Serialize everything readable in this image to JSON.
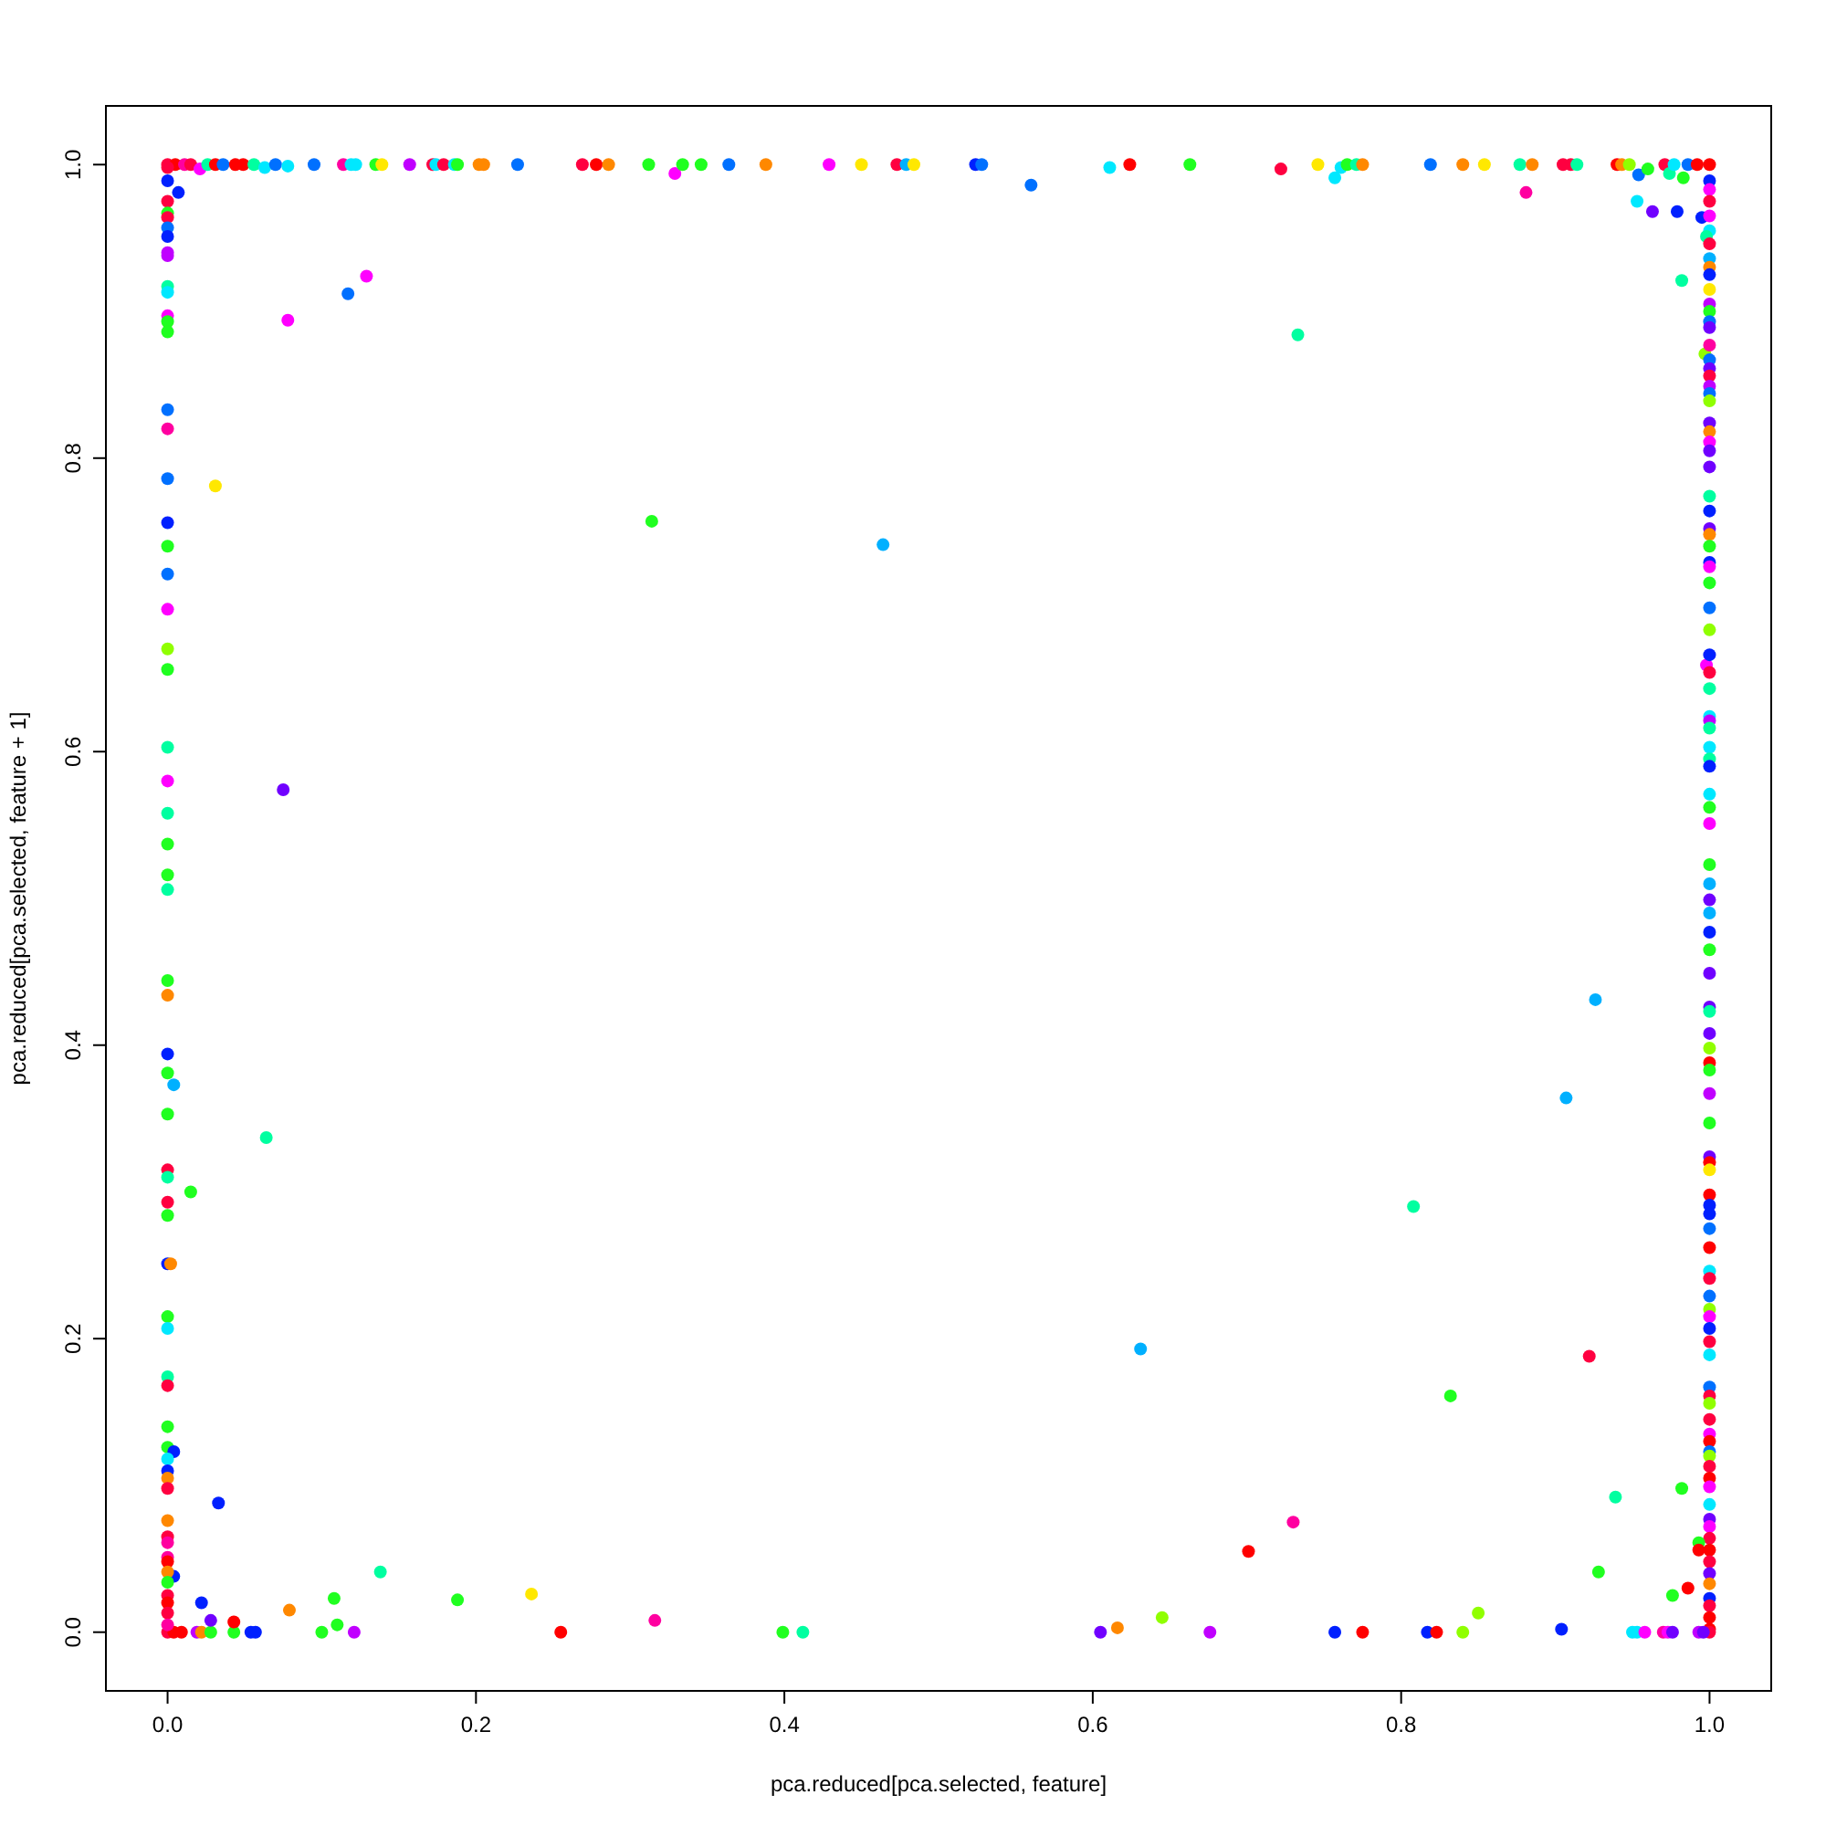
{
  "chart_data": {
    "type": "scatter",
    "xlabel": "pca.reduced[pca.selected, feature]",
    "ylabel": "pca.reduced[pca.selected, feature + 1]",
    "marker": "circle",
    "xlim": [
      -0.04,
      1.04
    ],
    "ylim": [
      -0.04,
      1.04
    ],
    "xticks": [
      {
        "value": 0,
        "label": "0.0"
      },
      {
        "value": 0.2,
        "label": "0.2"
      },
      {
        "value": 0.4,
        "label": "0.4"
      },
      {
        "value": 0.6,
        "label": "0.6"
      },
      {
        "value": 0.8,
        "label": "0.8"
      },
      {
        "value": 1,
        "label": "1.0"
      }
    ],
    "yticks": [
      {
        "value": 0,
        "label": "0.0"
      },
      {
        "value": 0.2,
        "label": "0.2"
      },
      {
        "value": 0.4,
        "label": "0.4"
      },
      {
        "value": 0.6,
        "label": "0.6"
      },
      {
        "value": 0.8,
        "label": "0.8"
      },
      {
        "value": 1,
        "label": "1.0"
      }
    ],
    "x": [
      0,
      0.005,
      0.011,
      0.015,
      0.021,
      0.026,
      0.031,
      0.036,
      0.044,
      0.049,
      0.056,
      0.063,
      0.07,
      0.078,
      0.095,
      0.114,
      0.119,
      0.122,
      0.135,
      0.139,
      0.157,
      0.172,
      0.174,
      0.179,
      0.186,
      0.188,
      0.202,
      0.205,
      0.227,
      0.269,
      0.278,
      0.286,
      0.312,
      0.329,
      0.334,
      0.346,
      0.364,
      0.388,
      0.429,
      0.45,
      0.473,
      0.479,
      0.484,
      0.524,
      0.528,
      0.56,
      0.611,
      0.624,
      0.663,
      0.722,
      0.746,
      0.757,
      0.761,
      0.765,
      0.771,
      0.775,
      0.819,
      0.84,
      0.854,
      0.877,
      0.881,
      0.885,
      0.905,
      0.91,
      0.914,
      0.94,
      0.943,
      0.948,
      0.954,
      0.96,
      0.971,
      0.974,
      0.977,
      0.983,
      0.986,
      0.992,
      0.953,
      0.963,
      0.979,
      0.995,
      0.982,
      0.997,
      0.998,
      1,
      1,
      1,
      1,
      1,
      1,
      0.998,
      1,
      1,
      1,
      1,
      1,
      1,
      1,
      1,
      1,
      1,
      1,
      1,
      1,
      1,
      1,
      1,
      1,
      1,
      1,
      1,
      1,
      1,
      1,
      1,
      1,
      1,
      1,
      1,
      1,
      1,
      1,
      1,
      1,
      1,
      1,
      1,
      1,
      1,
      1,
      1,
      1,
      1,
      1,
      1,
      1,
      1,
      1,
      1,
      1,
      1,
      1,
      1,
      1,
      1,
      1,
      1,
      1,
      1,
      1,
      1,
      1,
      1,
      1,
      1,
      1,
      1,
      1,
      1,
      1,
      1,
      1,
      1,
      1,
      1,
      1,
      1,
      1,
      1,
      1,
      1,
      1,
      1,
      1,
      1,
      1,
      1,
      1,
      1,
      1,
      1,
      1,
      1,
      1,
      1,
      1,
      1,
      1,
      1,
      0.982,
      0.993,
      0.993,
      0.986,
      0.976,
      0.605,
      0.616,
      0.645,
      0.676,
      0.757,
      0.775,
      0.817,
      0.823,
      0.84,
      0.85,
      0.904,
      0.928,
      0.95,
      0.953,
      0.958,
      0.97,
      0.973,
      0.976,
      0.993,
      0.996,
      0,
      0.004,
      0.009,
      0.019,
      0.022,
      0.028,
      0.043,
      0.054,
      0.057,
      0.1,
      0.121,
      0.255,
      0.399,
      0.412,
      0.004,
      0.138,
      0.022,
      0.108,
      0.188,
      0.236,
      0.079,
      0.028,
      0.043,
      0.11,
      0.316,
      0,
      0,
      0.007,
      0,
      0,
      0,
      0,
      0,
      0,
      0,
      0,
      0,
      0,
      0,
      0,
      0,
      0,
      0,
      0.031,
      0,
      0,
      0,
      0,
      0,
      0,
      0,
      0,
      0,
      0,
      0,
      0,
      0,
      0,
      0,
      0,
      0.004,
      0,
      0,
      0,
      0,
      0.015,
      0,
      0,
      0.002,
      0,
      0,
      0,
      0,
      0,
      0,
      0.004,
      0,
      0,
      0,
      0,
      0.033,
      0,
      0,
      0,
      0,
      0,
      0,
      0,
      0,
      0,
      0,
      0,
      0.117,
      0.129,
      0.078,
      0.314,
      0.464,
      0.075,
      0.064,
      0.733,
      0.926,
      0.907,
      0.808,
      0.631,
      0.832,
      0.922,
      0.939,
      0.73,
      0.701
    ],
    "values": [
      1,
      1,
      1,
      1,
      0.997,
      1,
      1,
      1,
      1,
      1,
      1,
      0.998,
      1,
      0.999,
      1,
      1,
      1,
      1,
      1,
      1,
      1,
      1,
      1,
      1,
      1,
      1,
      1,
      1,
      1,
      1,
      1,
      1,
      1,
      0.994,
      1,
      1,
      1,
      1,
      1,
      1,
      1,
      1,
      1,
      1,
      1,
      0.986,
      0.998,
      1,
      1,
      0.997,
      1,
      0.991,
      0.998,
      1,
      1,
      1,
      1,
      1,
      1,
      1,
      0.981,
      1,
      1,
      1,
      1,
      1,
      1,
      1,
      0.993,
      0.997,
      1,
      0.994,
      1,
      0.991,
      1,
      1,
      0.975,
      0.968,
      0.968,
      0.964,
      0.921,
      0.871,
      0.659,
      1,
      0.989,
      0.983,
      0.975,
      0.965,
      0.955,
      0.951,
      0.946,
      0.936,
      0.93,
      0.925,
      0.915,
      0.905,
      0.9,
      0.893,
      0.889,
      0.877,
      0.867,
      0.861,
      0.856,
      0.849,
      0.844,
      0.839,
      0.824,
      0.818,
      0.811,
      0.805,
      0.794,
      0.774,
      0.764,
      0.752,
      0.748,
      0.74,
      0.729,
      0.726,
      0.715,
      0.698,
      0.683,
      0.666,
      0.654,
      0.643,
      0.624,
      0.621,
      0.616,
      0.603,
      0.595,
      0.59,
      0.571,
      0.562,
      0.551,
      0.523,
      0.51,
      0.499,
      0.49,
      0.477,
      0.465,
      0.449,
      0.426,
      0.423,
      0.408,
      0.398,
      0.388,
      0.383,
      0.367,
      0.347,
      0.324,
      0.32,
      0.315,
      0.298,
      0.291,
      0.285,
      0.275,
      0.262,
      0.246,
      0.241,
      0.229,
      0.22,
      0.215,
      0.207,
      0.198,
      0.189,
      0.167,
      0.161,
      0.156,
      0.145,
      0.135,
      0.13,
      0.123,
      0.12,
      0.113,
      0.105,
      0.099,
      0.087,
      0.077,
      0.072,
      0.064,
      0.056,
      0.048,
      0.04,
      0.033,
      0.023,
      0.018,
      0.01,
      0.002,
      0,
      0.098,
      0.061,
      0.056,
      0.03,
      0.025,
      0,
      0.003,
      0.01,
      0,
      0,
      0,
      0,
      0,
      0,
      0.013,
      0.002,
      0.041,
      0,
      0,
      0,
      0,
      0,
      0,
      0,
      0,
      0,
      0,
      0,
      0,
      0,
      0,
      0,
      0,
      0,
      0,
      0,
      0,
      0,
      0,
      0.038,
      0.041,
      0.02,
      0.023,
      0.022,
      0.026,
      0.015,
      0.008,
      0.007,
      0.005,
      0.008,
      0.998,
      0.989,
      0.981,
      0.975,
      0.967,
      0.964,
      0.957,
      0.951,
      0.94,
      0.938,
      0.917,
      0.913,
      0.897,
      0.893,
      0.886,
      0.833,
      0.82,
      0.786,
      0.781,
      0.756,
      0.74,
      0.721,
      0.697,
      0.67,
      0.656,
      0.603,
      0.58,
      0.558,
      0.537,
      0.516,
      0.506,
      0.444,
      0.434,
      0.394,
      0.381,
      0.373,
      0.353,
      0.315,
      0.31,
      0.293,
      0.3,
      0.284,
      0.251,
      0.251,
      0.215,
      0.207,
      0.174,
      0.168,
      0.14,
      0.126,
      0.123,
      0.118,
      0.11,
      0.105,
      0.098,
      0.088,
      0.076,
      0.065,
      0.061,
      0.051,
      0.048,
      0.041,
      0.034,
      0.025,
      0.02,
      0.013,
      0.005,
      0.912,
      0.924,
      0.894,
      0.757,
      0.741,
      0.574,
      0.337,
      0.884,
      0.431,
      0.364,
      0.29,
      0.193,
      0.161,
      0.188,
      0.092,
      0.075,
      0.055
    ],
    "colors": [
      "#ff0040",
      "#ff0000",
      "#ff00a0",
      "#ff0040",
      "#ff00ff",
      "#00ffa0",
      "#ff0000",
      "#0070ff",
      "#ff0000",
      "#ff0000",
      "#00ffa0",
      "#00e8ff",
      "#0070ff",
      "#00e8ff",
      "#0070ff",
      "#ff00a0",
      "#00e8ff",
      "#00e8ff",
      "#20ff20",
      "#ffe800",
      "#c000ff",
      "#ff0040",
      "#00e8ff",
      "#ff0040",
      "#00e8ff",
      "#20ff20",
      "#ff8800",
      "#ff8800",
      "#0070ff",
      "#ff0040",
      "#ff0000",
      "#ff8800",
      "#20ff20",
      "#ff00ff",
      "#20ff20",
      "#20ff20",
      "#0070ff",
      "#ff8800",
      "#ff00ff",
      "#ffe800",
      "#ff0040",
      "#00b0ff",
      "#ffe800",
      "#0020ff",
      "#0070ff",
      "#0070ff",
      "#00e8ff",
      "#ff0000",
      "#20ff20",
      "#ff0040",
      "#ffe800",
      "#00e8ff",
      "#00e8ff",
      "#20ff20",
      "#00ffa0",
      "#ff8800",
      "#0070ff",
      "#ff8800",
      "#ffe800",
      "#00ffa0",
      "#ff00a0",
      "#ff8800",
      "#ff0040",
      "#ff0040",
      "#00ffa0",
      "#ff0000",
      "#ff8800",
      "#90ff00",
      "#0070ff",
      "#20ff20",
      "#ff0040",
      "#00ffa0",
      "#00e8ff",
      "#20ff20",
      "#0070ff",
      "#ff0000",
      "#00e8ff",
      "#7000ff",
      "#0020ff",
      "#0020ff",
      "#00ffa0",
      "#90ff00",
      "#ff00ff",
      "#ff0000",
      "#0020ff",
      "#ff00ff",
      "#ff0040",
      "#ff00ff",
      "#00e8ff",
      "#00ffa0",
      "#ff0040",
      "#00b0ff",
      "#ff8800",
      "#0020ff",
      "#ffe800",
      "#c000ff",
      "#20ff20",
      "#0070ff",
      "#7000ff",
      "#ff00a0",
      "#0070ff",
      "#7000ff",
      "#ff0040",
      "#c000ff",
      "#0070ff",
      "#90ff00",
      "#7000ff",
      "#ff8800",
      "#ff00ff",
      "#7000ff",
      "#7000ff",
      "#00ffa0",
      "#0020ff",
      "#7000ff",
      "#ff8800",
      "#20ff20",
      "#0020ff",
      "#ff00ff",
      "#20ff20",
      "#0070ff",
      "#90ff00",
      "#0020ff",
      "#ff0040",
      "#00ffa0",
      "#00e8ff",
      "#c000ff",
      "#00ffa0",
      "#00e8ff",
      "#00ffa0",
      "#0020ff",
      "#00e8ff",
      "#20ff20",
      "#ff00ff",
      "#20ff20",
      "#00b0ff",
      "#7000ff",
      "#00b0ff",
      "#0020ff",
      "#20ff20",
      "#7000ff",
      "#7000ff",
      "#00ffa0",
      "#7000ff",
      "#90ff00",
      "#ff0000",
      "#20ff20",
      "#c000ff",
      "#20ff20",
      "#7000ff",
      "#ff0000",
      "#ffe800",
      "#ff0000",
      "#0020ff",
      "#0020ff",
      "#0070ff",
      "#ff0000",
      "#00e8ff",
      "#ff0040",
      "#0070ff",
      "#90ff00",
      "#ff00ff",
      "#0020ff",
      "#ff0040",
      "#00e8ff",
      "#0070ff",
      "#ff0040",
      "#90ff00",
      "#ff0040",
      "#ff00ff",
      "#ff0000",
      "#0070ff",
      "#90ff00",
      "#ff0040",
      "#ff0000",
      "#ff00ff",
      "#00e8ff",
      "#7000ff",
      "#ff00ff",
      "#ff0040",
      "#ff0000",
      "#ff0040",
      "#7000ff",
      "#ff8800",
      "#0020ff",
      "#ff0040",
      "#ff0000",
      "#ff0000",
      "#ff0040",
      "#20ff20",
      "#20ff20",
      "#ff0000",
      "#ff0000",
      "#20ff20",
      "#7000ff",
      "#ff8800",
      "#90ff00",
      "#c000ff",
      "#0020ff",
      "#ff0000",
      "#0020ff",
      "#ff0000",
      "#90ff00",
      "#90ff00",
      "#0020ff",
      "#20ff20",
      "#00e8ff",
      "#00e8ff",
      "#ff00ff",
      "#ff00a0",
      "#ff00ff",
      "#7000ff",
      "#c000ff",
      "#7000ff",
      "#ff0040",
      "#ff0000",
      "#ff0000",
      "#c000ff",
      "#ff8800",
      "#20ff20",
      "#20ff20",
      "#0020ff",
      "#0020ff",
      "#20ff20",
      "#c000ff",
      "#ff0000",
      "#20ff20",
      "#00ffa0",
      "#0020ff",
      "#00ffa0",
      "#0020ff",
      "#20ff20",
      "#20ff20",
      "#ffe800",
      "#ff8800",
      "#7000ff",
      "#ff0000",
      "#20ff20",
      "#ff00a0",
      "#ff0040",
      "#0020ff",
      "#0020ff",
      "#ff0040",
      "#20ff20",
      "#ff0040",
      "#0070ff",
      "#0020ff",
      "#c000ff",
      "#c000ff",
      "#00ffa0",
      "#00e8ff",
      "#ff00ff",
      "#20ff20",
      "#20ff20",
      "#0070ff",
      "#ff00a0",
      "#0070ff",
      "#ffe800",
      "#0020ff",
      "#20ff20",
      "#0070ff",
      "#ff00ff",
      "#90ff00",
      "#20ff20",
      "#00ffa0",
      "#ff00ff",
      "#00ffa0",
      "#20ff20",
      "#20ff20",
      "#00ffa0",
      "#20ff20",
      "#ff8800",
      "#0020ff",
      "#20ff20",
      "#00b0ff",
      "#20ff20",
      "#ff0040",
      "#00ffa0",
      "#ff0040",
      "#20ff20",
      "#20ff20",
      "#0020ff",
      "#ff8800",
      "#20ff20",
      "#00e8ff",
      "#00ffa0",
      "#ff0040",
      "#20ff20",
      "#20ff20",
      "#0020ff",
      "#00e8ff",
      "#0020ff",
      "#ff8800",
      "#ff0040",
      "#0020ff",
      "#ff8800",
      "#ff0040",
      "#ff00a0",
      "#ff00a0",
      "#ff0000",
      "#ff8800",
      "#20ff20",
      "#ff0040",
      "#ff0000",
      "#ff0040",
      "#ff00a0",
      "#0070ff",
      "#ff00ff",
      "#ff00ff",
      "#20ff20",
      "#00b0ff",
      "#7000ff",
      "#00ffa0",
      "#00ffa0",
      "#00b0ff",
      "#00b0ff",
      "#00ffa0",
      "#00b0ff",
      "#20ff20",
      "#ff0040",
      "#00ffa0",
      "#ff00a0",
      "#ff0000"
    ]
  }
}
